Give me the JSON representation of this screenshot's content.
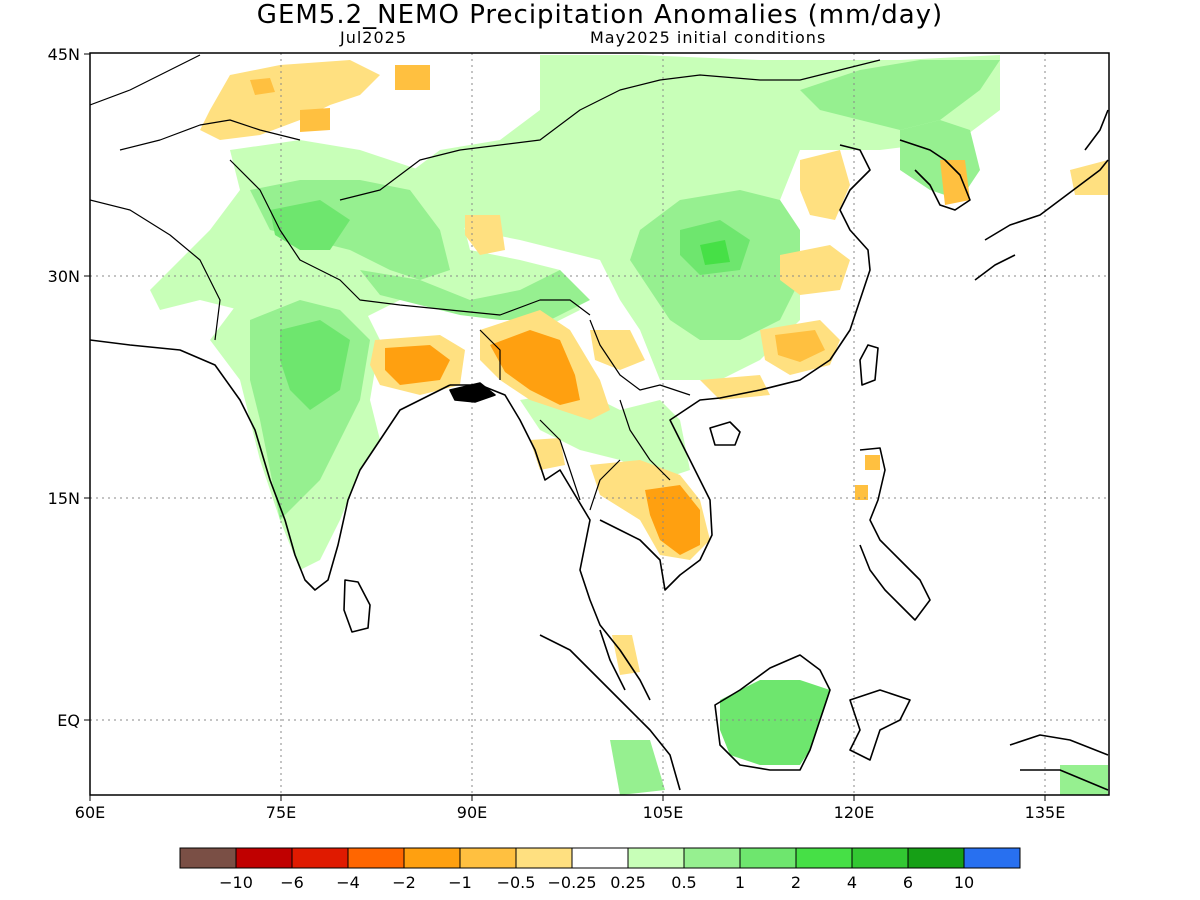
{
  "title": "GEM5.2_NEMO Precipitation Anomalies (mm/day)",
  "subtitle_left": "Jul2025",
  "subtitle_right": "May2025 initial conditions",
  "map": {
    "lon_range": [
      60,
      140
    ],
    "lat_range": [
      -5,
      45
    ],
    "lat_ticks": [
      {
        "value": 45,
        "label": "45N"
      },
      {
        "value": 30,
        "label": "30N"
      },
      {
        "value": 15,
        "label": "15N"
      },
      {
        "value": 0,
        "label": "EQ"
      }
    ],
    "lon_ticks": [
      {
        "value": 60,
        "label": "60E"
      },
      {
        "value": 75,
        "label": "75E"
      },
      {
        "value": 90,
        "label": "90E"
      },
      {
        "value": 105,
        "label": "105E"
      },
      {
        "value": 120,
        "label": "120E"
      },
      {
        "value": 135,
        "label": "135E"
      }
    ]
  },
  "colorbar": {
    "colors": [
      "#7a4f45",
      "#c00000",
      "#e01a00",
      "#ff6600",
      "#ffa010",
      "#ffc040",
      "#ffe080",
      "#ffffff",
      "#c8ffb8",
      "#96f090",
      "#6ee66e",
      "#46e046",
      "#32c832",
      "#16a016",
      "#2870f0"
    ],
    "labels": [
      "−10",
      "−6",
      "−4",
      "−2",
      "−1",
      "−0.5",
      "−0.25",
      "0.25",
      "0.5",
      "1",
      "2",
      "4",
      "6",
      "10"
    ]
  }
}
